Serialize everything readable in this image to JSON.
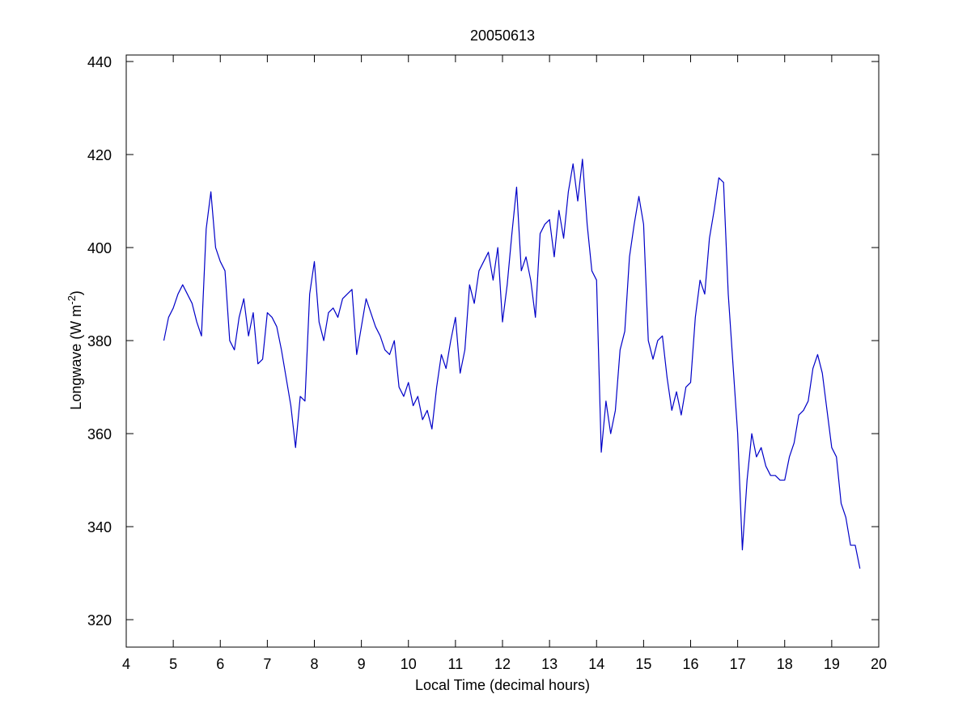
{
  "chart_data": {
    "type": "line",
    "title": "20050613",
    "xlabel": "Local Time (decimal hours)",
    "ylabel": {
      "text": "Longwave (W m",
      "superscript": "-2",
      "suffix": ")"
    },
    "xlim": [
      4,
      20
    ],
    "xticks": [
      4,
      5,
      6,
      7,
      8,
      9,
      10,
      11,
      12,
      13,
      14,
      15,
      16,
      17,
      18,
      19,
      20
    ],
    "ylim": [
      314.1,
      441.4
    ],
    "yticks": [
      320,
      340,
      360,
      380,
      400,
      420,
      440
    ],
    "grid": false,
    "x": [
      4.8,
      4.9,
      5.0,
      5.1,
      5.2,
      5.3,
      5.4,
      5.5,
      5.6,
      5.7,
      5.8,
      5.9,
      6.0,
      6.1,
      6.2,
      6.3,
      6.4,
      6.5,
      6.6,
      6.7,
      6.8,
      6.9,
      7.0,
      7.1,
      7.2,
      7.3,
      7.4,
      7.5,
      7.6,
      7.7,
      7.8,
      7.9,
      8.0,
      8.1,
      8.2,
      8.3,
      8.4,
      8.5,
      8.6,
      8.7,
      8.8,
      8.9,
      9.0,
      9.1,
      9.2,
      9.3,
      9.4,
      9.5,
      9.6,
      9.7,
      9.8,
      9.9,
      10.0,
      10.1,
      10.2,
      10.3,
      10.4,
      10.5,
      10.6,
      10.7,
      10.8,
      10.9,
      11.0,
      11.1,
      11.2,
      11.3,
      11.4,
      11.5,
      11.6,
      11.7,
      11.8,
      11.9,
      12.0,
      12.1,
      12.2,
      12.3,
      12.4,
      12.5,
      12.6,
      12.7,
      12.8,
      12.9,
      13.0,
      13.1,
      13.2,
      13.3,
      13.4,
      13.5,
      13.6,
      13.7,
      13.8,
      13.9,
      14.0,
      14.1,
      14.2,
      14.3,
      14.4,
      14.5,
      14.6,
      14.7,
      14.8,
      14.9,
      15.0,
      15.1,
      15.2,
      15.3,
      15.4,
      15.5,
      15.6,
      15.7,
      15.8,
      15.9,
      16.0,
      16.1,
      16.2,
      16.3,
      16.4,
      16.5,
      16.6,
      16.7,
      16.8,
      16.9,
      17.0,
      17.1,
      17.2,
      17.3,
      17.4,
      17.5,
      17.6,
      17.7,
      17.8,
      17.9,
      18.0,
      18.1,
      18.2,
      18.3,
      18.4,
      18.5,
      18.6,
      18.7,
      18.8,
      18.9,
      19.0,
      19.1,
      19.2,
      19.3,
      19.4,
      19.5,
      19.6
    ],
    "series": [
      {
        "color": "#0000c8",
        "values": [
          380,
          385,
          387,
          390,
          392,
          390,
          388,
          384,
          381,
          404,
          412,
          400,
          397,
          395,
          380,
          378,
          385,
          389,
          381,
          386,
          375,
          376,
          386,
          385,
          383,
          378,
          372,
          366,
          357,
          368,
          367,
          390,
          397,
          384,
          380,
          386,
          387,
          385,
          389,
          390,
          391,
          377,
          383,
          389,
          386,
          383,
          381,
          378,
          377,
          380,
          370,
          368,
          371,
          366,
          368,
          363,
          365,
          361,
          370,
          377,
          374,
          380,
          385,
          373,
          378,
          392,
          388,
          395,
          397,
          399,
          393,
          400,
          384,
          392,
          403,
          413,
          395,
          398,
          393,
          385,
          403,
          405,
          406,
          398,
          408,
          402,
          412,
          418,
          410,
          419,
          405,
          395,
          393,
          356,
          367,
          360,
          365,
          378,
          382,
          398,
          405,
          411,
          405,
          380,
          376,
          380,
          381,
          372,
          365,
          369,
          364,
          370,
          371,
          385,
          393,
          390,
          402,
          408,
          415,
          414,
          390,
          375,
          360,
          335,
          350,
          360,
          355,
          357,
          353,
          351,
          351,
          350,
          350,
          355,
          358,
          364,
          365,
          367,
          374,
          377,
          373,
          365,
          357,
          355,
          345,
          342,
          336,
          336,
          331
        ]
      }
    ]
  }
}
